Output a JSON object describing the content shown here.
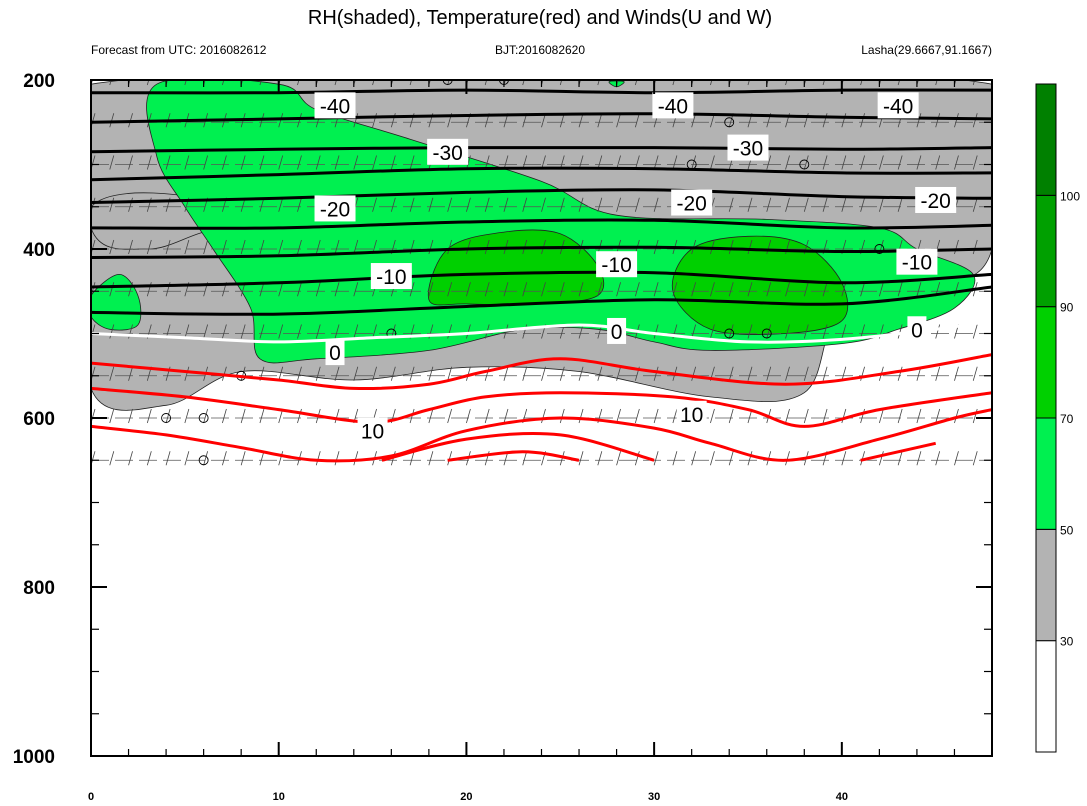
{
  "chart_data": {
    "type": "contour",
    "title": "RH(shaded), Temperature(red) and Winds(U and W)",
    "subtitle_left": "Forecast from UTC: 2016082612",
    "subtitle_center": "BJT:2016082620",
    "subtitle_right": "Lasha(29.6667,91.1667)",
    "xlim": [
      0,
      48
    ],
    "x_ticks": [
      0,
      10,
      20,
      30,
      40
    ],
    "ylim": [
      1000,
      200
    ],
    "y_ticks": [
      200,
      400,
      600,
      800,
      1000
    ],
    "y_scale": "linear, inverted (pressure)",
    "colorbar": {
      "levels": [
        30,
        50,
        70,
        90,
        100
      ],
      "colors": [
        "#ffffff",
        "#b3b3b3",
        "#00f050",
        "#00d000",
        "#00a000",
        "#008000"
      ]
    },
    "rh_regions": [
      {
        "level": "30-50",
        "color": "#b3b3b3",
        "points": [
          [
            0,
            205
          ],
          [
            48,
            205
          ],
          [
            48,
            400
          ],
          [
            45,
            445
          ],
          [
            40,
            470
          ],
          [
            38,
            570
          ],
          [
            33,
            575
          ],
          [
            26,
            545
          ],
          [
            20,
            540
          ],
          [
            14,
            555
          ],
          [
            8,
            545
          ],
          [
            4,
            585
          ],
          [
            0,
            565
          ],
          [
            0,
            350
          ],
          [
            9,
            350
          ],
          [
            9,
            365
          ],
          [
            6,
            380
          ],
          [
            3,
            400
          ],
          [
            0,
            375
          ]
        ]
      },
      {
        "level": "50-70",
        "color": "#00f050",
        "points": [
          [
            3.5,
            205
          ],
          [
            10,
            205
          ],
          [
            12,
            235
          ],
          [
            17,
            270
          ],
          [
            24,
            320
          ],
          [
            28,
            360
          ],
          [
            36,
            365
          ],
          [
            42,
            375
          ],
          [
            44,
            400
          ],
          [
            47,
            430
          ],
          [
            46,
            470
          ],
          [
            43,
            495
          ],
          [
            40,
            512
          ],
          [
            33,
            520
          ],
          [
            30,
            510
          ],
          [
            27,
            495
          ],
          [
            23,
            495
          ],
          [
            18,
            520
          ],
          [
            12,
            530
          ],
          [
            9,
            530
          ],
          [
            8.5,
            470
          ],
          [
            6.5,
            400
          ],
          [
            5,
            350
          ],
          [
            3.5,
            290
          ]
        ]
      },
      {
        "level": "50-70",
        "color": "#00f050",
        "points": [
          [
            0,
            480
          ],
          [
            0,
            455
          ],
          [
            1.5,
            430
          ],
          [
            2.5,
            455
          ],
          [
            2.5,
            490
          ],
          [
            1,
            495
          ]
        ]
      },
      {
        "level": "70-90",
        "color": "#00d000",
        "points": [
          [
            18,
            460
          ],
          [
            19,
            400
          ],
          [
            22,
            380
          ],
          [
            25,
            382
          ],
          [
            27,
            420
          ],
          [
            27,
            455
          ],
          [
            24,
            465
          ],
          [
            20,
            465
          ]
        ]
      },
      {
        "level": "70-90",
        "color": "#00d000",
        "points": [
          [
            31,
            450
          ],
          [
            32,
            400
          ],
          [
            35,
            385
          ],
          [
            38,
            395
          ],
          [
            40,
            440
          ],
          [
            40,
            485
          ],
          [
            37,
            500
          ],
          [
            33,
            495
          ]
        ]
      },
      {
        "level": "50-70",
        "color": "#00f050",
        "points": [
          [
            27.6,
            202
          ],
          [
            28.4,
            202
          ],
          [
            28,
            208
          ]
        ]
      }
    ],
    "temperature_contours": [
      {
        "value": -40,
        "points": [
          [
            0,
            215
          ],
          [
            10,
            215
          ],
          [
            20,
            212
          ],
          [
            30,
            215
          ],
          [
            40,
            212
          ],
          [
            48,
            212
          ]
        ]
      },
      {
        "value": -40,
        "points": [
          [
            0,
            250
          ],
          [
            10,
            246
          ],
          [
            20,
            242
          ],
          [
            30,
            240
          ],
          [
            40,
            244
          ],
          [
            48,
            246
          ]
        ]
      },
      {
        "value": -30,
        "points": [
          [
            0,
            285
          ],
          [
            10,
            282
          ],
          [
            20,
            280
          ],
          [
            30,
            280
          ],
          [
            40,
            282
          ],
          [
            48,
            280
          ]
        ]
      },
      {
        "value": -30,
        "points": [
          [
            0,
            318
          ],
          [
            10,
            312
          ],
          [
            20,
            305
          ],
          [
            30,
            305
          ],
          [
            40,
            310
          ],
          [
            48,
            310
          ]
        ]
      },
      {
        "value": -20,
        "points": [
          [
            0,
            345
          ],
          [
            10,
            340
          ],
          [
            20,
            333
          ],
          [
            30,
            330
          ],
          [
            40,
            338
          ],
          [
            48,
            340
          ]
        ]
      },
      {
        "value": -20,
        "points": [
          [
            0,
            375
          ],
          [
            10,
            375
          ],
          [
            20,
            368
          ],
          [
            30,
            366
          ],
          [
            40,
            375
          ],
          [
            48,
            372
          ]
        ]
      },
      {
        "value": -10,
        "points": [
          [
            0,
            410
          ],
          [
            10,
            408
          ],
          [
            20,
            400
          ],
          [
            30,
            398
          ],
          [
            40,
            403
          ],
          [
            48,
            400
          ]
        ]
      },
      {
        "value": -10,
        "points": [
          [
            0,
            445
          ],
          [
            10,
            440
          ],
          [
            20,
            430
          ],
          [
            30,
            428
          ],
          [
            40,
            440
          ],
          [
            48,
            430
          ]
        ]
      },
      {
        "value": -10,
        "points": [
          [
            0,
            475
          ],
          [
            10,
            477
          ],
          [
            20,
            468
          ],
          [
            30,
            460
          ],
          [
            40,
            465
          ],
          [
            48,
            445
          ]
        ]
      },
      {
        "value": 0,
        "color": "#ffffff",
        "points": [
          [
            0,
            500
          ],
          [
            5,
            505
          ],
          [
            10,
            510
          ],
          [
            15,
            505
          ],
          [
            20,
            500
          ],
          [
            26,
            490
          ],
          [
            30,
            500
          ],
          [
            35,
            510
          ],
          [
            40,
            507
          ],
          [
            45,
            495
          ],
          [
            48,
            485
          ]
        ]
      },
      {
        "value": 10,
        "color": "#ff0000",
        "points": [
          [
            0,
            535
          ],
          [
            5,
            545
          ],
          [
            10,
            555
          ],
          [
            14,
            565
          ],
          [
            18,
            560
          ],
          [
            21,
            545
          ],
          [
            25,
            530
          ],
          [
            30,
            545
          ],
          [
            37,
            560
          ],
          [
            43,
            545
          ],
          [
            48,
            525
          ]
        ]
      },
      {
        "value": 10,
        "color": "#ff0000",
        "points": [
          [
            0,
            565
          ],
          [
            5,
            575
          ],
          [
            10,
            590
          ],
          [
            15,
            605
          ],
          [
            18,
            590
          ],
          [
            21,
            575
          ],
          [
            25,
            570
          ],
          [
            31,
            575
          ],
          [
            35,
            590
          ],
          [
            38,
            610
          ],
          [
            42,
            590
          ],
          [
            48,
            570
          ]
        ]
      },
      {
        "value": 10,
        "color": "#ff0000",
        "points": [
          [
            0,
            610
          ],
          [
            4,
            620
          ],
          [
            8,
            635
          ],
          [
            12,
            650
          ],
          [
            16,
            645
          ],
          [
            20,
            615
          ],
          [
            25,
            600
          ],
          [
            30,
            612
          ],
          [
            33,
            630
          ],
          [
            37,
            650
          ],
          [
            42,
            625
          ],
          [
            46,
            600
          ],
          [
            48,
            590
          ]
        ]
      },
      {
        "value": 10,
        "color": "#ff0000",
        "points": [
          [
            15.5,
            650
          ],
          [
            20,
            625
          ],
          [
            25,
            620
          ],
          [
            30,
            650
          ]
        ]
      },
      {
        "value": 10,
        "color": "#ff0000",
        "points": [
          [
            19,
            650
          ],
          [
            23,
            640
          ],
          [
            26,
            650
          ]
        ]
      },
      {
        "value": 10,
        "color": "#ff0000",
        "points": [
          [
            41,
            650
          ],
          [
            45,
            630
          ]
        ]
      }
    ],
    "contour_labels": [
      {
        "text": "-40",
        "x": 13,
        "y": 230
      },
      {
        "text": "-40",
        "x": 31,
        "y": 230
      },
      {
        "text": "-40",
        "x": 43,
        "y": 230
      },
      {
        "text": "-30",
        "x": 19,
        "y": 285
      },
      {
        "text": "-30",
        "x": 35,
        "y": 280
      },
      {
        "text": "-20",
        "x": 13,
        "y": 352
      },
      {
        "text": "-20",
        "x": 32,
        "y": 345
      },
      {
        "text": "-20",
        "x": 45,
        "y": 342
      },
      {
        "text": "-10",
        "x": 16,
        "y": 432
      },
      {
        "text": "-10",
        "x": 28,
        "y": 418
      },
      {
        "text": "-10",
        "x": 44,
        "y": 415
      },
      {
        "text": "0",
        "x": 13,
        "y": 522
      },
      {
        "text": "0",
        "x": 28,
        "y": 497
      },
      {
        "text": "0",
        "x": 44,
        "y": 495
      },
      {
        "text": "10",
        "x": 15,
        "y": 615
      },
      {
        "text": "10",
        "x": 32,
        "y": 595
      }
    ]
  }
}
